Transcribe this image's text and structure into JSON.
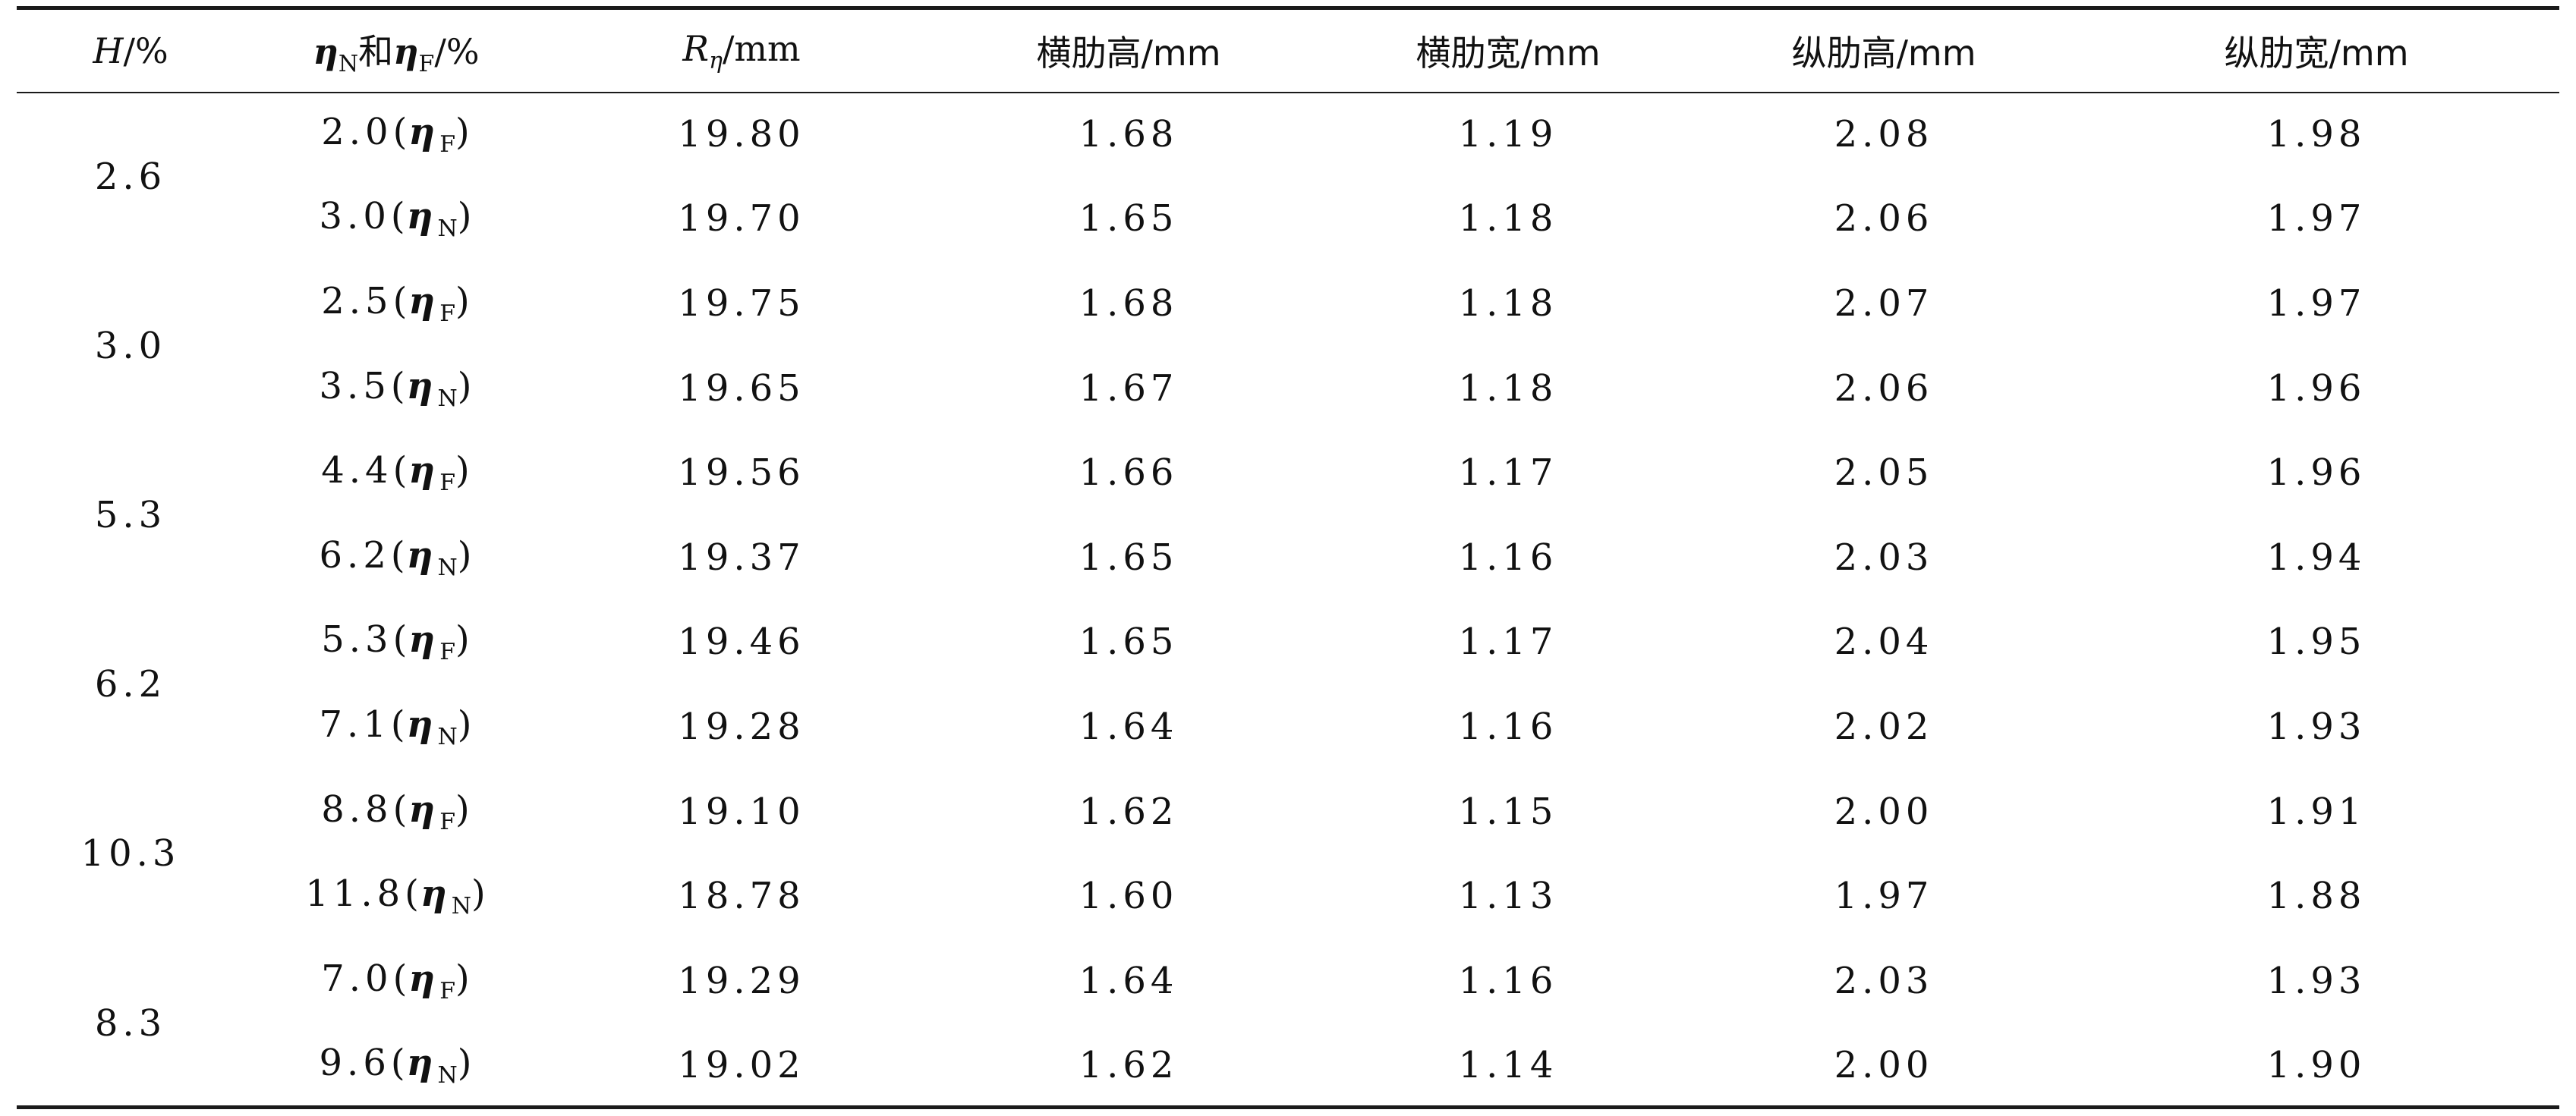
{
  "table": {
    "headers": {
      "h": {
        "sym": "H",
        "unit": "/%"
      },
      "eta": {
        "sym1": "η",
        "sub1": "N",
        "joiner": "和",
        "sym2": "η",
        "sub2": "F",
        "unit": "/%"
      },
      "r": {
        "sym": "R",
        "sub": "η",
        "unit": "/mm"
      },
      "col4": "横肋高/mm",
      "col5": "横肋宽/mm",
      "col6": "纵肋高/mm",
      "col7": "纵肋宽/mm"
    },
    "groups": [
      {
        "h": "2.6",
        "rows": [
          {
            "eta_value": "2.0",
            "eta_sub": "F",
            "r": "19.80",
            "c4": "1.68",
            "c5": "1.19",
            "c6": "2.08",
            "c7": "1.98"
          },
          {
            "eta_value": "3.0",
            "eta_sub": "N",
            "r": "19.70",
            "c4": "1.65",
            "c5": "1.18",
            "c6": "2.06",
            "c7": "1.97"
          }
        ]
      },
      {
        "h": "3.0",
        "rows": [
          {
            "eta_value": "2.5",
            "eta_sub": "F",
            "r": "19.75",
            "c4": "1.68",
            "c5": "1.18",
            "c6": "2.07",
            "c7": "1.97"
          },
          {
            "eta_value": "3.5",
            "eta_sub": "N",
            "r": "19.65",
            "c4": "1.67",
            "c5": "1.18",
            "c6": "2.06",
            "c7": "1.96"
          }
        ]
      },
      {
        "h": "5.3",
        "rows": [
          {
            "eta_value": "4.4",
            "eta_sub": "F",
            "r": "19.56",
            "c4": "1.66",
            "c5": "1.17",
            "c6": "2.05",
            "c7": "1.96"
          },
          {
            "eta_value": "6.2",
            "eta_sub": "N",
            "r": "19.37",
            "c4": "1.65",
            "c5": "1.16",
            "c6": "2.03",
            "c7": "1.94"
          }
        ]
      },
      {
        "h": "6.2",
        "rows": [
          {
            "eta_value": "5.3",
            "eta_sub": "F",
            "r": "19.46",
            "c4": "1.65",
            "c5": "1.17",
            "c6": "2.04",
            "c7": "1.95"
          },
          {
            "eta_value": "7.1",
            "eta_sub": "N",
            "r": "19.28",
            "c4": "1.64",
            "c5": "1.16",
            "c6": "2.02",
            "c7": "1.93"
          }
        ]
      },
      {
        "h": "10.3",
        "rows": [
          {
            "eta_value": "8.8",
            "eta_sub": "F",
            "r": "19.10",
            "c4": "1.62",
            "c5": "1.15",
            "c6": "2.00",
            "c7": "1.91"
          },
          {
            "eta_value": "11.8",
            "eta_sub": "N",
            "r": "18.78",
            "c4": "1.60",
            "c5": "1.13",
            "c6": "1.97",
            "c7": "1.88"
          }
        ]
      },
      {
        "h": "8.3",
        "rows": [
          {
            "eta_value": "7.0",
            "eta_sub": "F",
            "r": "19.29",
            "c4": "1.64",
            "c5": "1.16",
            "c6": "2.03",
            "c7": "1.93"
          },
          {
            "eta_value": "9.6",
            "eta_sub": "N",
            "r": "19.02",
            "c4": "1.62",
            "c5": "1.14",
            "c6": "2.00",
            "c7": "1.90"
          }
        ]
      }
    ],
    "eta_symbol": "η"
  }
}
